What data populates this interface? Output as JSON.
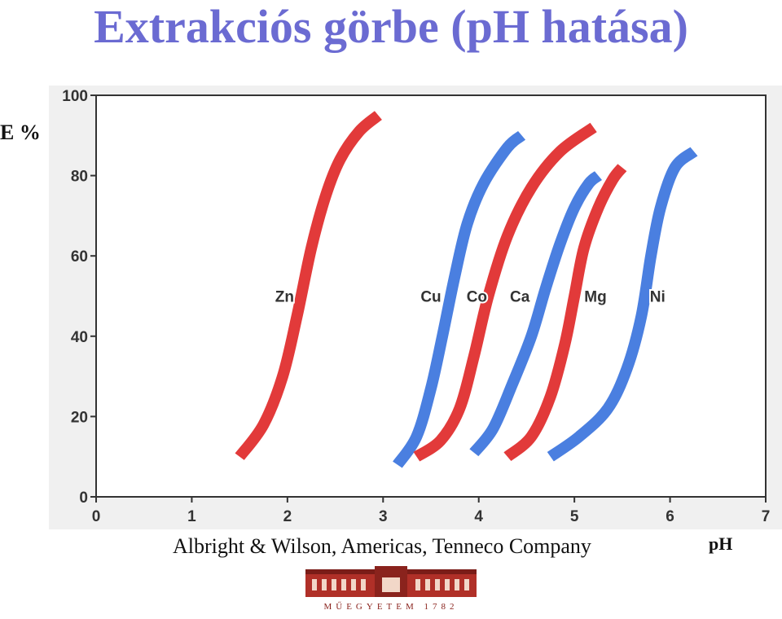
{
  "title": "Extrakciós görbe (pH hatása)",
  "ylabel": "E %",
  "xlabel": "pH",
  "credit": "Albright & Wilson, Americas, Tenneco Company",
  "logo_text": "MŰEGYETEM 1782",
  "colors": {
    "title": "#6b6bd2",
    "red": "#e23a3a",
    "blue": "#4a7fe0",
    "background": "#f0f0f0"
  },
  "chart_data": {
    "type": "line",
    "xlim": [
      0,
      7
    ],
    "ylim": [
      0,
      100
    ],
    "xticks": [
      "0",
      "1",
      "2",
      "3",
      "4",
      "5",
      "6",
      "7"
    ],
    "yticks": [
      "0",
      "20",
      "40",
      "60",
      "80",
      "100"
    ],
    "grid": false,
    "series": [
      {
        "name": "Zn",
        "color": "red",
        "x": [
          1.5,
          1.75,
          1.95,
          2.1,
          2.25,
          2.4,
          2.55,
          2.75,
          2.95
        ],
        "y": [
          10,
          18,
          30,
          45,
          62,
          75,
          84,
          91,
          95
        ]
      },
      {
        "name": "Cu",
        "color": "blue",
        "x": [
          3.15,
          3.35,
          3.5,
          3.62,
          3.75,
          3.88,
          4.05,
          4.3,
          4.45
        ],
        "y": [
          8,
          15,
          27,
          40,
          55,
          68,
          78,
          87,
          90
        ]
      },
      {
        "name": "Co",
        "color": "red",
        "x": [
          3.35,
          3.6,
          3.8,
          3.95,
          4.1,
          4.3,
          4.55,
          4.85,
          5.2
        ],
        "y": [
          10,
          14,
          22,
          35,
          50,
          65,
          77,
          86,
          92
        ]
      },
      {
        "name": "Ca",
        "color": "blue",
        "x": [
          3.95,
          4.15,
          4.35,
          4.55,
          4.7,
          4.85,
          5.0,
          5.15,
          5.25
        ],
        "y": [
          11,
          17,
          28,
          40,
          52,
          63,
          72,
          78,
          80
        ]
      },
      {
        "name": "Mg",
        "color": "red",
        "x": [
          4.3,
          4.55,
          4.75,
          4.9,
          5.0,
          5.1,
          5.25,
          5.4,
          5.5
        ],
        "y": [
          10,
          15,
          25,
          38,
          50,
          62,
          72,
          79,
          82
        ]
      },
      {
        "name": "Ni",
        "color": "blue",
        "x": [
          4.75,
          5.05,
          5.35,
          5.55,
          5.7,
          5.8,
          5.9,
          6.05,
          6.25
        ],
        "y": [
          10,
          15,
          22,
          32,
          45,
          60,
          72,
          82,
          86
        ]
      }
    ],
    "annotations": [
      {
        "text": "Zn",
        "x": 1.97,
        "y": 50
      },
      {
        "text": "Cu",
        "x": 3.5,
        "y": 50
      },
      {
        "text": "Co",
        "x": 3.98,
        "y": 50
      },
      {
        "text": "Ca",
        "x": 4.43,
        "y": 50
      },
      {
        "text": "Mg",
        "x": 5.22,
        "y": 50
      },
      {
        "text": "Ni",
        "x": 5.87,
        "y": 50
      }
    ]
  }
}
